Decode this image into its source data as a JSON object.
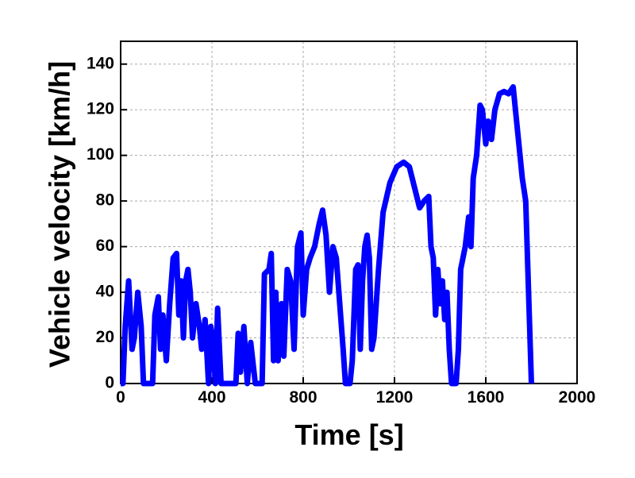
{
  "chart_data": {
    "type": "line",
    "x_label": "Time [s]",
    "y_label": "Vehicle velocity [km/h]",
    "xlim": [
      0,
      2000
    ],
    "xticks": [
      0,
      400,
      800,
      1200,
      1600,
      2000
    ],
    "ylim": [
      0,
      150
    ],
    "yticks": [
      0,
      20,
      40,
      60,
      80,
      100,
      120,
      140
    ],
    "grid": true,
    "series": [
      {
        "name": "Vehicle velocity",
        "color": "#0000ff",
        "x": [
          0,
          10,
          20,
          35,
          50,
          60,
          75,
          90,
          100,
          140,
          150,
          165,
          175,
          185,
          200,
          215,
          230,
          245,
          255,
          265,
          275,
          285,
          295,
          305,
          315,
          330,
          345,
          355,
          370,
          385,
          395,
          405,
          415,
          425,
          440,
          505,
          515,
          525,
          540,
          555,
          570,
          590,
          620,
          630,
          650,
          660,
          670,
          680,
          690,
          705,
          715,
          730,
          745,
          760,
          775,
          790,
          800,
          815,
          830,
          850,
          870,
          885,
          900,
          915,
          930,
          945,
          960,
          975,
          985,
          1005,
          1015,
          1030,
          1040,
          1050,
          1060,
          1070,
          1080,
          1090,
          1100,
          1110,
          1130,
          1150,
          1180,
          1210,
          1240,
          1265,
          1290,
          1310,
          1330,
          1350,
          1360,
          1370,
          1380,
          1390,
          1400,
          1410,
          1420,
          1430,
          1440,
          1450,
          1470,
          1480,
          1490,
          1510,
          1525,
          1535,
          1545,
          1560,
          1575,
          1585,
          1600,
          1610,
          1625,
          1640,
          1660,
          1680,
          1700,
          1720,
          1740,
          1760,
          1775,
          1800
        ],
        "values": [
          0,
          0,
          25,
          45,
          15,
          20,
          40,
          25,
          0,
          0,
          30,
          38,
          15,
          30,
          10,
          35,
          55,
          57,
          30,
          45,
          20,
          45,
          50,
          40,
          20,
          35,
          25,
          15,
          28,
          0,
          25,
          18,
          0,
          33,
          0,
          0,
          22,
          5,
          25,
          0,
          18,
          0,
          0,
          48,
          50,
          57,
          10,
          40,
          10,
          35,
          12,
          50,
          45,
          15,
          60,
          66,
          30,
          50,
          55,
          60,
          70,
          76,
          65,
          40,
          60,
          55,
          35,
          15,
          0,
          0,
          10,
          50,
          52,
          15,
          45,
          60,
          65,
          55,
          15,
          20,
          50,
          75,
          88,
          95,
          97,
          95,
          85,
          77,
          80,
          82,
          60,
          55,
          30,
          50,
          35,
          45,
          28,
          40,
          15,
          0,
          0,
          15,
          50,
          60,
          73,
          60,
          90,
          100,
          122,
          120,
          105,
          115,
          107,
          120,
          127,
          128,
          127,
          130,
          110,
          90,
          80,
          0
        ]
      }
    ]
  }
}
